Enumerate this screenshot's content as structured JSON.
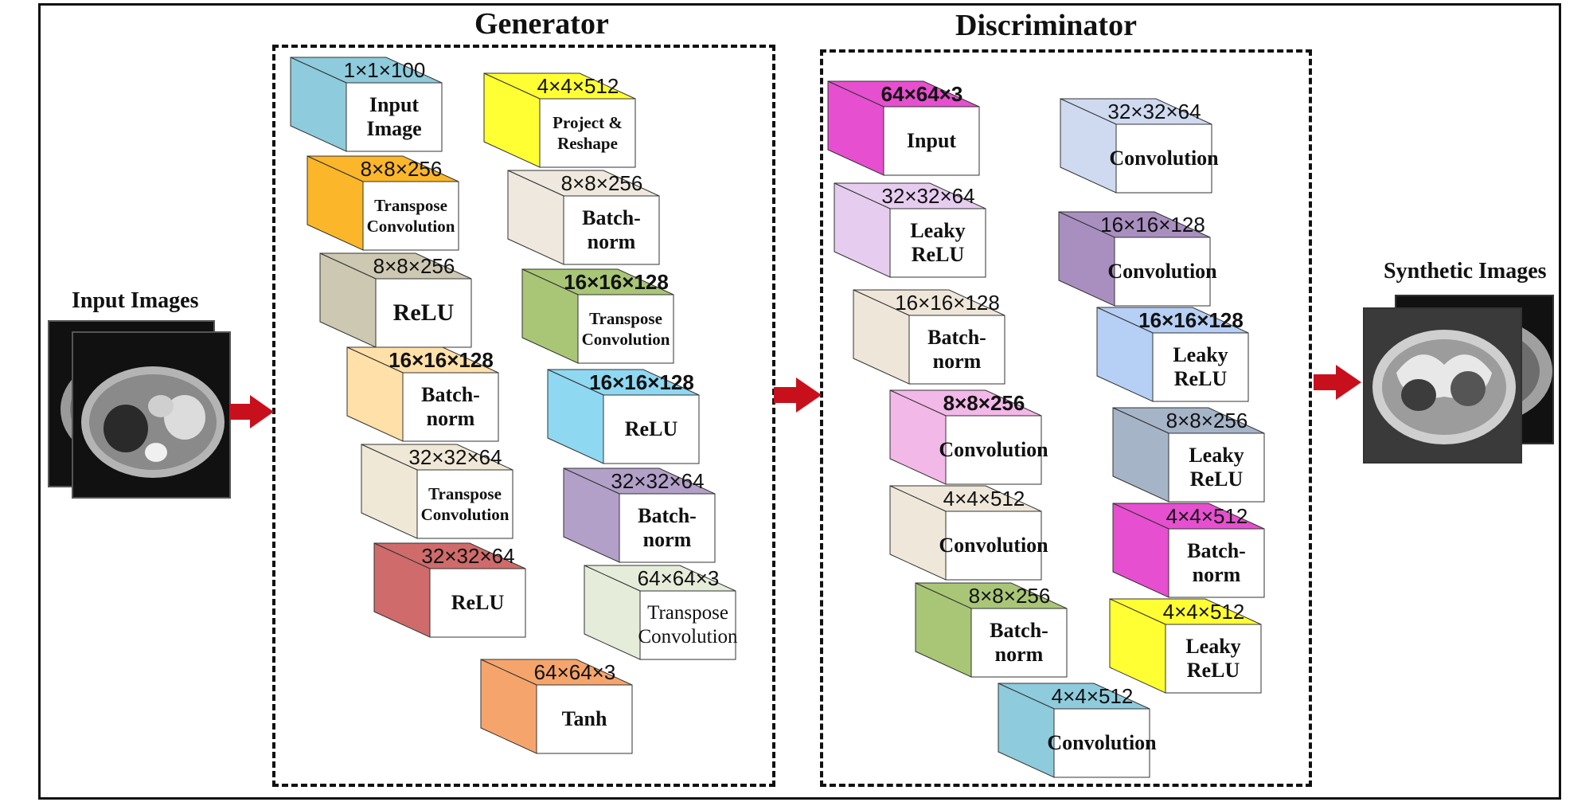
{
  "labels": {
    "generator": "Generator",
    "discriminator": "Discriminator",
    "input_images": "Input Images",
    "synthetic_images": "Synthetic Images"
  },
  "generator": {
    "blocks": [
      {
        "dim": "1×1×100",
        "label": "Input\nImage",
        "color": "#8ecbdc"
      },
      {
        "dim": "4×4×512",
        "label": "Project &\nReshape",
        "color": "#ffff33"
      },
      {
        "dim": "8×8×256",
        "label": "Transpose\nConvolution",
        "color": "#fbb62a"
      },
      {
        "dim": "8×8×256",
        "label": "Batch-\nnorm",
        "color": "#efe8de"
      },
      {
        "dim": "8×8×256",
        "label": "ReLU",
        "color": "#cdc8b2"
      },
      {
        "dim": "16×16×128",
        "label": "Transpose\nConvolution",
        "color": "#a9c677"
      },
      {
        "dim": "16×16×128",
        "label": "Batch-\nnorm",
        "color": "#ffe0a8"
      },
      {
        "dim": "16×16×128",
        "label": "ReLU",
        "color": "#8fd8f2"
      },
      {
        "dim": "32×32×64",
        "label": "Transpose\nConvolution",
        "color": "#efe8d6"
      },
      {
        "dim": "32×32×64",
        "label": "Batch-\nnorm",
        "color": "#b2a0c9"
      },
      {
        "dim": "32×32×64",
        "label": "ReLU",
        "color": "#cf6b6b"
      },
      {
        "dim": "64×64×3",
        "label": "Transpose\nConvolution",
        "color": "#e6ecda"
      },
      {
        "dim": "64×64×3",
        "label": "Tanh",
        "color": "#f5a56c"
      }
    ]
  },
  "discriminator": {
    "blocks": [
      {
        "dim": "64×64×3",
        "label": "Input",
        "color": "#e64fcf"
      },
      {
        "dim": "32×32×64",
        "label": "Convolution",
        "color": "#cfdaf0"
      },
      {
        "dim": "32×32×64",
        "label": "Leaky\nReLU",
        "color": "#e6cdef"
      },
      {
        "dim": "16×16×128",
        "label": "Convolution",
        "color": "#a98fbf"
      },
      {
        "dim": "16×16×128",
        "label": "Batch-\nnorm",
        "color": "#efe6da"
      },
      {
        "dim": "16×16×128",
        "label": "Leaky\nReLU",
        "color": "#b6cff4"
      },
      {
        "dim": "8×8×256",
        "label": "Convolution",
        "color": "#f2b8e8"
      },
      {
        "dim": "8×8×256",
        "label": "Leaky\nReLU",
        "color": "#a6b4c8"
      },
      {
        "dim": "4×4×512",
        "label": "Convolution",
        "color": "#efe8da"
      },
      {
        "dim": "4×4×512",
        "label": "Batch-\nnorm",
        "color": "#e64fcf"
      },
      {
        "dim": "8×8×256",
        "label": "Batch-\nnorm",
        "color": "#a9c677"
      },
      {
        "dim": "4×4×512",
        "label": "Leaky\nReLU",
        "color": "#ffff33"
      },
      {
        "dim": "4×4×512",
        "label": "Convolution",
        "color": "#8ecbdc"
      }
    ]
  },
  "colors": {
    "arrow": "#c8101c",
    "frame": "#111111",
    "face": "#ffffff"
  }
}
